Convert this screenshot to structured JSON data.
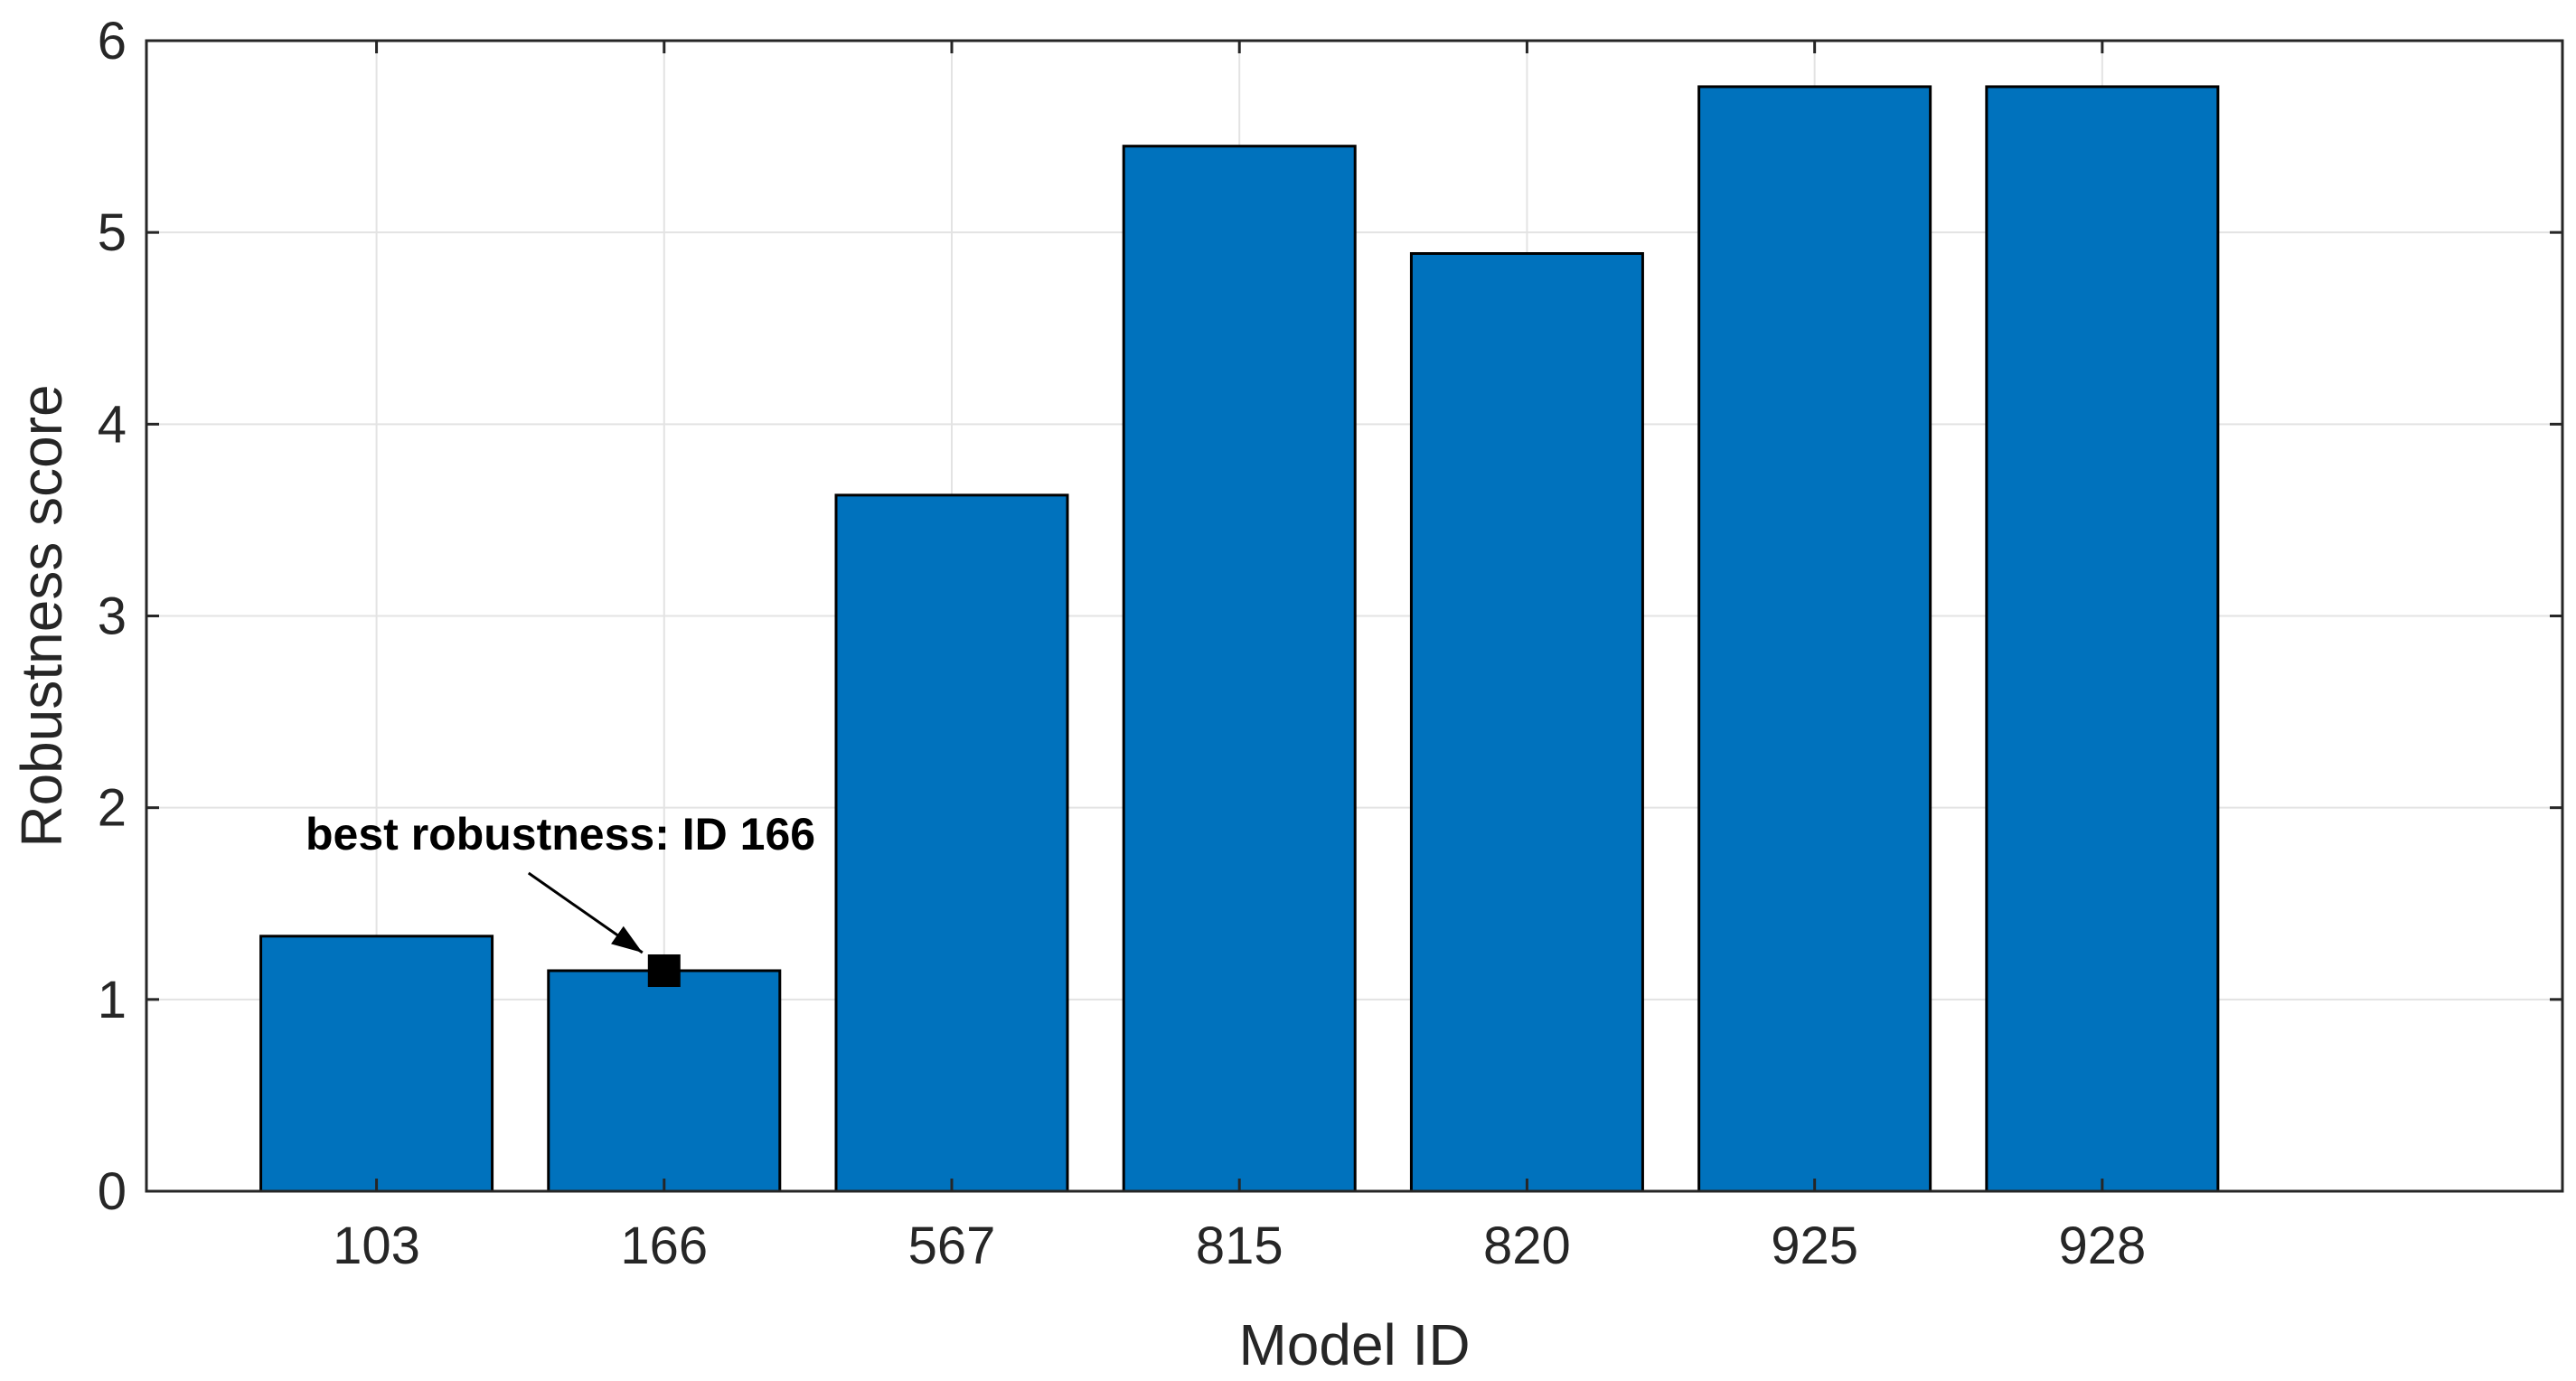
{
  "chart_data": {
    "type": "bar",
    "categories": [
      "103",
      "166",
      "567",
      "815",
      "820",
      "925",
      "928"
    ],
    "values": [
      1.33,
      1.15,
      3.63,
      5.45,
      4.89,
      5.76,
      5.76
    ],
    "title": "",
    "xlabel": "Model ID",
    "ylabel": "Robustness score",
    "xlim": [
      -0.8,
      7.6
    ],
    "ylim": [
      0,
      6
    ],
    "yticks": [
      "0",
      "1",
      "2",
      "3",
      "4",
      "5",
      "6"
    ],
    "grid": true,
    "bar_color": "#0072BD",
    "annotation": {
      "text": "best robustness: ID 166",
      "target_category": "166",
      "target_value": 1.15,
      "marker": "black-square-marker",
      "marker_color": "#000000"
    }
  }
}
